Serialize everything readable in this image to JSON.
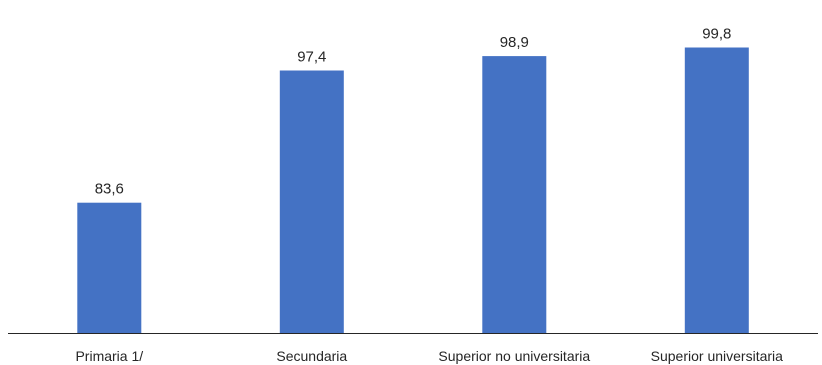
{
  "chart_data": {
    "type": "bar",
    "categories": [
      "Primaria 1/",
      "Secundaria",
      "Superior no universitaria",
      "Superior universitaria"
    ],
    "values": [
      83.6,
      97.4,
      98.9,
      99.8
    ],
    "value_labels": [
      "83,6",
      "97,4",
      "98,9",
      "99,8"
    ],
    "title": "",
    "xlabel": "",
    "ylabel": "",
    "ylim": [
      70,
      101
    ],
    "grid": false,
    "legend": "none",
    "bar_color": "#4472C4",
    "axis_color": "#262626"
  }
}
